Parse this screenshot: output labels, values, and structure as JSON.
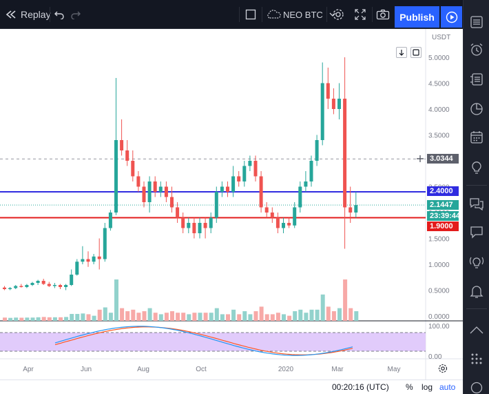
{
  "toolbar": {
    "replay_label": "Replay",
    "symbol_label": "NEO BTC",
    "publish_label": "Publish"
  },
  "chart": {
    "currency": "USDT",
    "crosshair_price": "3.0344",
    "line_upper_price": "2.4000",
    "last_price": "2.1447",
    "countdown": "23:39:44",
    "line_lower_price": "1.9000",
    "colors": {
      "up": "#26a69a",
      "down": "#ef5350",
      "vol_up": "#92d2cc",
      "vol_down": "#f7a9a7",
      "upper_line": "#2f2be0",
      "lower_line": "#e31b1b",
      "osc_band": "#e1cbfb",
      "osc_k": "#2196f3",
      "osc_d": "#ff5722"
    }
  },
  "chart_data": {
    "type": "candlestick",
    "price_axis_ticks": [
      "5.0000",
      "4.5000",
      "4.0000",
      "3.5000",
      "3.0000",
      "2.5000",
      "2.0000",
      "1.5000",
      "1.0000",
      "0.5000",
      "0.0000"
    ],
    "oscillator_ticks": [
      "100.00",
      "0.00"
    ],
    "x_ticks": [
      "Apr",
      "Jun",
      "Aug",
      "Oct",
      "2020",
      "Mar",
      "May"
    ],
    "horizontal_lines": [
      2.4,
      1.9
    ],
    "candles": [
      [
        0.55,
        0.58,
        0.5,
        0.52
      ],
      [
        0.52,
        0.56,
        0.5,
        0.54
      ],
      [
        0.54,
        0.6,
        0.52,
        0.58
      ],
      [
        0.58,
        0.62,
        0.55,
        0.56
      ],
      [
        0.56,
        0.62,
        0.54,
        0.6
      ],
      [
        0.6,
        0.66,
        0.58,
        0.64
      ],
      [
        0.64,
        0.7,
        0.6,
        0.68
      ],
      [
        0.68,
        0.72,
        0.6,
        0.62
      ],
      [
        0.62,
        0.66,
        0.56,
        0.58
      ],
      [
        0.58,
        0.64,
        0.54,
        0.6
      ],
      [
        0.6,
        0.62,
        0.52,
        0.56
      ],
      [
        0.56,
        0.62,
        0.5,
        0.6
      ],
      [
        0.6,
        0.9,
        0.58,
        0.8
      ],
      [
        0.8,
        1.1,
        0.78,
        1.05
      ],
      [
        1.05,
        1.35,
        1.0,
        1.1
      ],
      [
        1.1,
        1.25,
        0.95,
        1.05
      ],
      [
        1.05,
        1.2,
        1.0,
        1.15
      ],
      [
        1.15,
        1.5,
        0.9,
        1.1
      ],
      [
        1.1,
        1.8,
        1.05,
        1.7
      ],
      [
        1.7,
        2.05,
        1.65,
        2.0
      ],
      [
        2.0,
        4.6,
        1.95,
        3.4
      ],
      [
        3.4,
        3.8,
        3.1,
        3.2
      ],
      [
        3.2,
        3.4,
        2.9,
        3.0
      ],
      [
        3.0,
        3.2,
        2.6,
        2.7
      ],
      [
        2.7,
        2.8,
        2.4,
        2.5
      ],
      [
        2.5,
        2.6,
        2.1,
        2.2
      ],
      [
        2.2,
        2.7,
        2.0,
        2.6
      ],
      [
        2.6,
        2.7,
        2.3,
        2.4
      ],
      [
        2.4,
        2.6,
        2.3,
        2.5
      ],
      [
        2.5,
        2.6,
        2.2,
        2.3
      ],
      [
        2.3,
        2.5,
        2.0,
        2.1
      ],
      [
        2.1,
        2.2,
        1.8,
        1.9
      ],
      [
        1.9,
        2.0,
        1.6,
        1.7
      ],
      [
        1.7,
        1.9,
        1.6,
        1.8
      ],
      [
        1.8,
        1.9,
        1.5,
        1.6
      ],
      [
        1.6,
        1.9,
        1.5,
        1.8
      ],
      [
        1.8,
        1.9,
        1.5,
        1.7
      ],
      [
        1.7,
        2.0,
        1.6,
        1.9
      ],
      [
        1.9,
        2.5,
        1.8,
        2.4
      ],
      [
        2.4,
        2.6,
        2.3,
        2.5
      ],
      [
        2.5,
        2.6,
        2.3,
        2.4
      ],
      [
        2.4,
        2.9,
        2.3,
        2.7
      ],
      [
        2.7,
        2.8,
        2.5,
        2.6
      ],
      [
        2.6,
        3.0,
        2.5,
        2.9
      ],
      [
        2.9,
        3.1,
        2.8,
        3.0
      ],
      [
        3.0,
        3.1,
        2.6,
        2.7
      ],
      [
        2.7,
        2.8,
        2.0,
        2.1
      ],
      [
        2.1,
        2.2,
        1.9,
        2.0
      ],
      [
        2.0,
        2.1,
        1.8,
        1.9
      ],
      [
        1.9,
        2.0,
        1.6,
        1.7
      ],
      [
        1.7,
        1.9,
        1.6,
        1.8
      ],
      [
        1.8,
        1.9,
        1.7,
        1.75
      ],
      [
        1.75,
        2.2,
        1.7,
        2.1
      ],
      [
        2.1,
        2.6,
        2.0,
        2.5
      ],
      [
        2.5,
        2.8,
        2.4,
        2.6
      ],
      [
        2.6,
        3.1,
        2.5,
        3.0
      ],
      [
        3.0,
        3.5,
        2.9,
        3.4
      ],
      [
        3.4,
        4.9,
        3.3,
        4.5
      ],
      [
        4.5,
        4.8,
        4.0,
        4.2
      ],
      [
        4.2,
        4.4,
        3.9,
        4.0
      ],
      [
        4.0,
        4.5,
        3.8,
        4.2
      ],
      [
        4.2,
        5.0,
        1.3,
        2.1
      ],
      [
        2.1,
        2.5,
        1.8,
        2.0
      ],
      [
        2.0,
        2.4,
        1.9,
        2.1447
      ]
    ]
  }
}
